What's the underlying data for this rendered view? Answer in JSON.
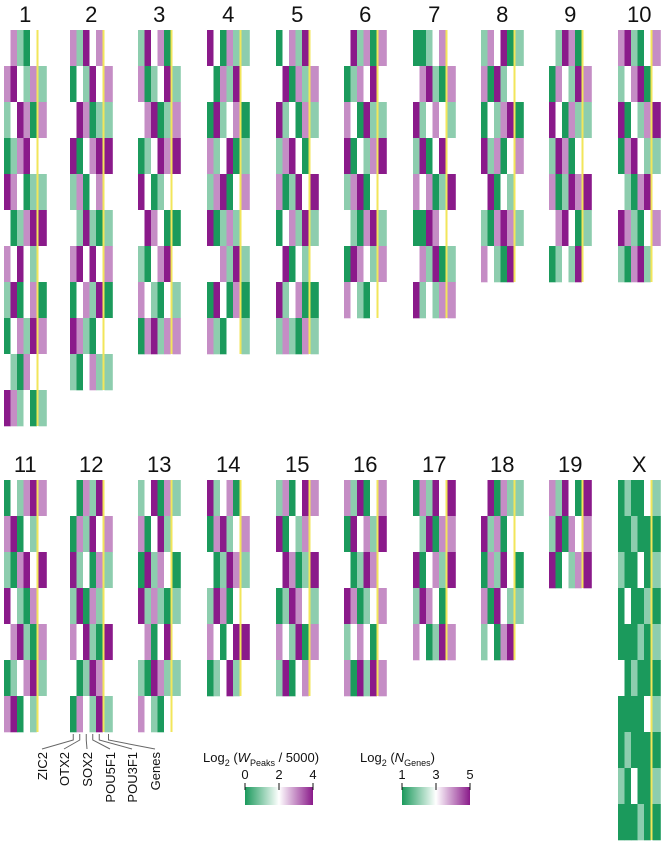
{
  "chart_data": {
    "type": "heatmap",
    "tracks": [
      "ZIC2",
      "OTX2",
      "SOX2",
      "POU5F1",
      "POU3F1",
      "Genes"
    ],
    "colors": {
      "low": "#1b9a5c",
      "mid": "#ffffff",
      "high": "#8a1a8a",
      "divider": "#f2e65a"
    },
    "legends": [
      {
        "prefix": "Log",
        "sub": "2",
        "open": " (",
        "var": "W",
        "var_sub": "Peaks",
        "rest": " / 5000)",
        "clim": [
          0,
          4
        ],
        "ticks": [
          0,
          2,
          4
        ]
      },
      {
        "prefix": "Log",
        "sub": "2",
        "open": " (",
        "var": "N",
        "var_sub": "Genes",
        "rest": ")",
        "clim": [
          1,
          5
        ],
        "ticks": [
          1,
          3,
          5
        ]
      }
    ],
    "chromosomes": [
      {
        "name": "1",
        "rows": [
          [
            2,
            3,
            1,
            0,
            2,
            3
          ],
          [
            3,
            4,
            2,
            1,
            3,
            2
          ],
          [
            1,
            2,
            4,
            3,
            0,
            4
          ],
          [
            0,
            1,
            3,
            4,
            2,
            3
          ],
          [
            4,
            3,
            2,
            0,
            1,
            2
          ],
          [
            2,
            0,
            1,
            3,
            4,
            5
          ],
          [
            3,
            2,
            4,
            2,
            1,
            3
          ],
          [
            1,
            4,
            0,
            2,
            3,
            1
          ],
          [
            0,
            2,
            3,
            1,
            4,
            4
          ],
          [
            2,
            1,
            0,
            3,
            2,
            3
          ],
          [
            4,
            3,
            1,
            2,
            0,
            2
          ]
        ]
      },
      {
        "name": "2",
        "rows": [
          [
            3,
            1,
            4,
            2,
            3,
            3
          ],
          [
            0,
            2,
            1,
            4,
            2,
            4
          ],
          [
            2,
            4,
            3,
            0,
            1,
            2
          ],
          [
            4,
            0,
            2,
            3,
            4,
            5
          ],
          [
            1,
            3,
            0,
            2,
            3,
            3
          ],
          [
            2,
            1,
            4,
            1,
            0,
            2
          ],
          [
            3,
            4,
            2,
            4,
            2,
            4
          ],
          [
            0,
            2,
            3,
            1,
            4,
            1
          ],
          [
            4,
            3,
            1,
            0,
            2,
            3
          ],
          [
            1,
            0,
            2,
            3,
            1,
            2
          ]
        ]
      },
      {
        "name": "3",
        "rows": [
          [
            1,
            4,
            2,
            3,
            0,
            3
          ],
          [
            3,
            0,
            1,
            2,
            4,
            2
          ],
          [
            2,
            3,
            4,
            0,
            1,
            4
          ],
          [
            0,
            1,
            2,
            4,
            3,
            5
          ],
          [
            4,
            2,
            0,
            1,
            2,
            3
          ],
          [
            2,
            4,
            3,
            2,
            0,
            1
          ],
          [
            1,
            0,
            2,
            3,
            4,
            3
          ],
          [
            3,
            2,
            1,
            0,
            2,
            2
          ],
          [
            0,
            3,
            4,
            1,
            3,
            4
          ]
        ]
      },
      {
        "name": "4",
        "rows": [
          [
            4,
            2,
            0,
            3,
            1,
            2
          ],
          [
            2,
            0,
            3,
            1,
            4,
            3
          ],
          [
            0,
            4,
            1,
            2,
            3,
            1
          ],
          [
            3,
            1,
            2,
            4,
            0,
            2
          ],
          [
            1,
            3,
            4,
            0,
            2,
            4
          ],
          [
            4,
            0,
            1,
            3,
            1,
            3
          ],
          [
            2,
            2,
            3,
            1,
            4,
            2
          ],
          [
            0,
            4,
            2,
            0,
            3,
            1
          ],
          [
            3,
            1,
            0,
            2,
            2,
            2
          ]
        ]
      },
      {
        "name": "5",
        "rows": [
          [
            0,
            2,
            3,
            1,
            4,
            3
          ],
          [
            2,
            4,
            0,
            3,
            1,
            4
          ],
          [
            4,
            1,
            2,
            0,
            3,
            2
          ],
          [
            1,
            3,
            4,
            2,
            0,
            3
          ],
          [
            3,
            0,
            1,
            4,
            2,
            5
          ],
          [
            0,
            2,
            3,
            1,
            4,
            2
          ],
          [
            2,
            4,
            0,
            2,
            1,
            3
          ],
          [
            4,
            1,
            2,
            3,
            0,
            1
          ],
          [
            1,
            3,
            1,
            0,
            3,
            2
          ]
        ]
      },
      {
        "name": "6",
        "rows": [
          [
            2,
            4,
            1,
            3,
            0,
            4
          ],
          [
            0,
            1,
            3,
            2,
            4,
            3
          ],
          [
            3,
            2,
            0,
            4,
            1,
            2
          ],
          [
            4,
            0,
            2,
            1,
            3,
            5
          ],
          [
            1,
            3,
            4,
            0,
            2,
            3
          ],
          [
            2,
            1,
            0,
            3,
            4,
            2
          ],
          [
            0,
            4,
            3,
            2,
            1,
            4
          ],
          [
            3,
            2,
            1,
            0,
            2,
            3
          ]
        ]
      },
      {
        "name": "7",
        "rows": [
          [
            0,
            0,
            1,
            2,
            3,
            3
          ],
          [
            2,
            3,
            4,
            1,
            0,
            4
          ],
          [
            4,
            1,
            2,
            3,
            2,
            2
          ],
          [
            1,
            4,
            0,
            2,
            4,
            3
          ],
          [
            3,
            2,
            3,
            0,
            1,
            5
          ],
          [
            0,
            0,
            4,
            3,
            2,
            3
          ],
          [
            2,
            3,
            1,
            4,
            0,
            2
          ],
          [
            4,
            1,
            2,
            1,
            3,
            4
          ]
        ]
      },
      {
        "name": "8",
        "rows": [
          [
            1,
            3,
            2,
            4,
            0,
            2
          ],
          [
            3,
            0,
            4,
            1,
            2,
            3
          ],
          [
            0,
            2,
            1,
            3,
            4,
            1
          ],
          [
            4,
            1,
            3,
            0,
            2,
            4
          ],
          [
            2,
            4,
            0,
            2,
            1,
            3
          ],
          [
            1,
            0,
            3,
            4,
            3,
            2
          ],
          [
            3,
            2,
            1,
            0,
            4,
            3
          ]
        ]
      },
      {
        "name": "9",
        "rows": [
          [
            2,
            1,
            4,
            3,
            0,
            3
          ],
          [
            0,
            3,
            2,
            1,
            4,
            4
          ],
          [
            4,
            2,
            0,
            3,
            1,
            2
          ],
          [
            1,
            4,
            3,
            0,
            2,
            3
          ],
          [
            3,
            0,
            1,
            4,
            3,
            5
          ],
          [
            2,
            3,
            4,
            2,
            0,
            2
          ],
          [
            0,
            1,
            2,
            1,
            4,
            3
          ]
        ]
      },
      {
        "name": "10",
        "rows": [
          [
            3,
            4,
            1,
            0,
            2,
            4
          ],
          [
            1,
            2,
            3,
            4,
            0,
            3
          ],
          [
            4,
            0,
            2,
            1,
            3,
            5
          ],
          [
            0,
            3,
            4,
            2,
            1,
            2
          ],
          [
            2,
            1,
            0,
            3,
            4,
            3
          ],
          [
            4,
            3,
            1,
            0,
            2,
            4
          ],
          [
            1,
            0,
            3,
            4,
            1,
            3
          ]
        ]
      },
      {
        "name": "11",
        "rows": [
          [
            0,
            2,
            1,
            3,
            4,
            4
          ],
          [
            3,
            4,
            0,
            2,
            1,
            3
          ],
          [
            1,
            0,
            3,
            4,
            2,
            5
          ],
          [
            4,
            2,
            1,
            0,
            3,
            3
          ],
          [
            2,
            3,
            4,
            1,
            0,
            4
          ],
          [
            0,
            1,
            2,
            3,
            4,
            2
          ],
          [
            3,
            4,
            0,
            2,
            1,
            3
          ]
        ]
      },
      {
        "name": "12",
        "rows": [
          [
            2,
            0,
            3,
            1,
            4,
            3
          ],
          [
            0,
            3,
            1,
            4,
            2,
            4
          ],
          [
            4,
            1,
            2,
            0,
            3,
            2
          ],
          [
            1,
            4,
            0,
            3,
            1,
            3
          ],
          [
            3,
            2,
            4,
            1,
            0,
            5
          ],
          [
            2,
            0,
            1,
            4,
            3,
            3
          ],
          [
            0,
            3,
            2,
            1,
            4,
            2
          ]
        ]
      },
      {
        "name": "13",
        "rows": [
          [
            1,
            2,
            4,
            0,
            3,
            2
          ],
          [
            3,
            0,
            2,
            4,
            1,
            3
          ],
          [
            0,
            4,
            1,
            3,
            2,
            1
          ],
          [
            4,
            1,
            3,
            1,
            0,
            2
          ],
          [
            2,
            3,
            0,
            2,
            4,
            3
          ],
          [
            1,
            0,
            4,
            3,
            1,
            2
          ],
          [
            3,
            2,
            1,
            0,
            2,
            3
          ]
        ]
      },
      {
        "name": "14",
        "rows": [
          [
            4,
            1,
            2,
            3,
            0,
            3
          ],
          [
            0,
            3,
            4,
            1,
            2,
            4
          ],
          [
            2,
            0,
            1,
            4,
            3,
            2
          ],
          [
            1,
            4,
            3,
            0,
            2,
            3
          ],
          [
            3,
            2,
            0,
            2,
            4,
            5
          ],
          [
            0,
            1,
            2,
            4,
            1,
            3
          ]
        ]
      },
      {
        "name": "15",
        "rows": [
          [
            1,
            3,
            0,
            2,
            4,
            4
          ],
          [
            4,
            0,
            2,
            1,
            3,
            3
          ],
          [
            2,
            4,
            3,
            0,
            1,
            5
          ],
          [
            0,
            1,
            4,
            3,
            2,
            2
          ],
          [
            3,
            2,
            1,
            4,
            0,
            4
          ],
          [
            1,
            4,
            0,
            2,
            3,
            3
          ]
        ]
      },
      {
        "name": "16",
        "rows": [
          [
            3,
            1,
            4,
            0,
            2,
            4
          ],
          [
            0,
            4,
            2,
            3,
            1,
            5
          ],
          [
            2,
            0,
            1,
            4,
            3,
            3
          ],
          [
            4,
            3,
            0,
            1,
            2,
            4
          ],
          [
            1,
            2,
            3,
            2,
            0,
            3
          ],
          [
            3,
            0,
            4,
            1,
            4,
            4
          ]
        ]
      },
      {
        "name": "17",
        "rows": [
          [
            0,
            3,
            1,
            4,
            2,
            5
          ],
          [
            2,
            1,
            4,
            0,
            3,
            4
          ],
          [
            4,
            0,
            2,
            3,
            1,
            5
          ],
          [
            1,
            4,
            3,
            2,
            0,
            3
          ],
          [
            3,
            2,
            0,
            1,
            4,
            4
          ]
        ]
      },
      {
        "name": "18",
        "rows": [
          [
            2,
            4,
            0,
            3,
            1,
            2
          ],
          [
            4,
            1,
            3,
            0,
            2,
            3
          ],
          [
            0,
            3,
            1,
            4,
            2,
            1
          ],
          [
            3,
            0,
            4,
            2,
            1,
            2
          ],
          [
            1,
            2,
            0,
            3,
            4,
            3
          ]
        ]
      },
      {
        "name": "19",
        "rows": [
          [
            3,
            1,
            4,
            2,
            0,
            5
          ],
          [
            1,
            4,
            0,
            3,
            2,
            4
          ],
          [
            4,
            0,
            2,
            1,
            3,
            5
          ]
        ]
      },
      {
        "name": "X",
        "rows": [
          [
            0,
            1,
            0,
            0,
            2,
            2
          ],
          [
            0,
            0,
            1,
            0,
            0,
            1
          ],
          [
            1,
            0,
            0,
            2,
            0,
            2
          ],
          [
            0,
            2,
            0,
            0,
            1,
            1
          ],
          [
            0,
            0,
            0,
            1,
            0,
            2
          ],
          [
            2,
            0,
            1,
            0,
            0,
            1
          ],
          [
            0,
            0,
            0,
            0,
            2,
            2
          ],
          [
            0,
            1,
            0,
            0,
            0,
            1
          ],
          [
            1,
            0,
            2,
            0,
            0,
            2
          ],
          [
            0,
            0,
            0,
            1,
            0,
            1
          ]
        ]
      }
    ]
  }
}
